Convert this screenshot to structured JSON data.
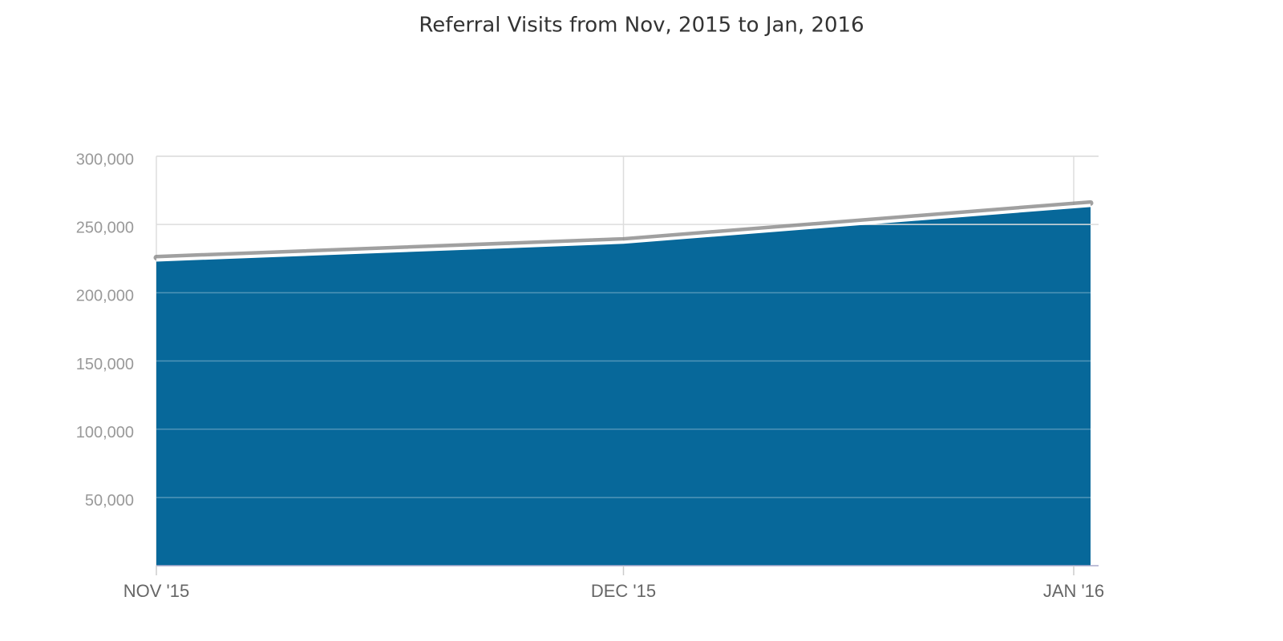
{
  "chart_data": {
    "type": "area",
    "title": "Referral Visits from Nov, 2015 to Jan, 2016",
    "categories": [
      "NOV '15",
      "DEC '15",
      "JAN '16"
    ],
    "series": [
      {
        "name": "Referral Visits",
        "color": "#07689a",
        "values": [
          224000,
          237000,
          264000
        ]
      }
    ],
    "ylim": [
      0,
      300000
    ],
    "yticks": [
      {
        "value": 50000,
        "label": "50,000"
      },
      {
        "value": 100000,
        "label": "100,000"
      },
      {
        "value": 150000,
        "label": "150,000"
      },
      {
        "value": 200000,
        "label": "200,000"
      },
      {
        "value": 250000,
        "label": "250,000"
      },
      {
        "value": 300000,
        "label": "300,000"
      }
    ],
    "grid": true
  }
}
